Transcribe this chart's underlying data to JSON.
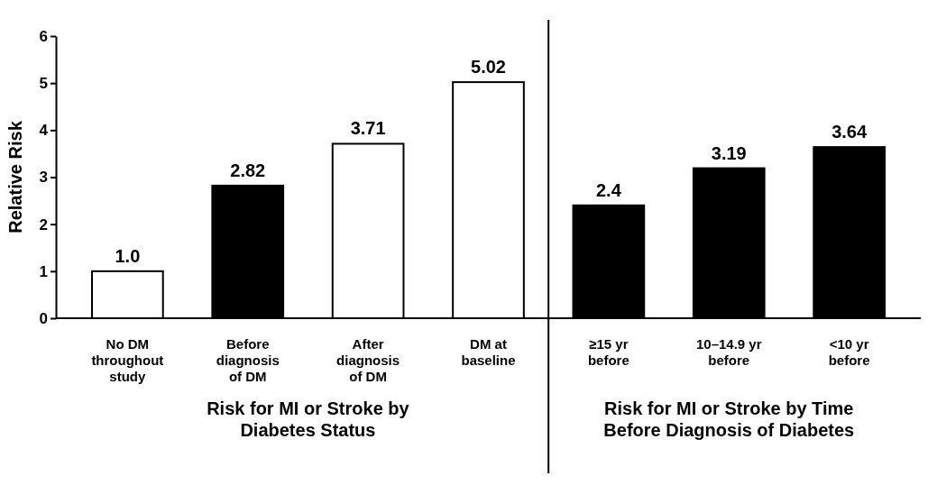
{
  "chart_data": {
    "type": "bar",
    "ylabel": "Relative Risk",
    "categories": [
      "No DM throughout study",
      "Before diagnosis of DM",
      "After diagnosis of DM",
      "DM at baseline",
      "≥15 yr before",
      "10–14.9 yr before",
      "<10 yr before"
    ],
    "values": [
      1.0,
      2.82,
      3.71,
      5.02,
      2.4,
      3.19,
      3.64
    ],
    "value_labels": [
      "1.0",
      "2.82",
      "3.71",
      "5.02",
      "2.4",
      "3.19",
      "3.64"
    ],
    "colors": [
      "#ffffff",
      "#000000",
      "#ffffff",
      "#ffffff",
      "#000000",
      "#000000",
      "#000000"
    ],
    "ylim": [
      0,
      6
    ],
    "yticks": [
      0,
      1,
      2,
      3,
      4,
      5,
      6
    ],
    "grid": false,
    "annotations": [
      "Risk for MI or Stroke by Diabetes Status",
      "Risk for MI or Stroke by Time Before Diagnosis of Diabetes"
    ]
  }
}
